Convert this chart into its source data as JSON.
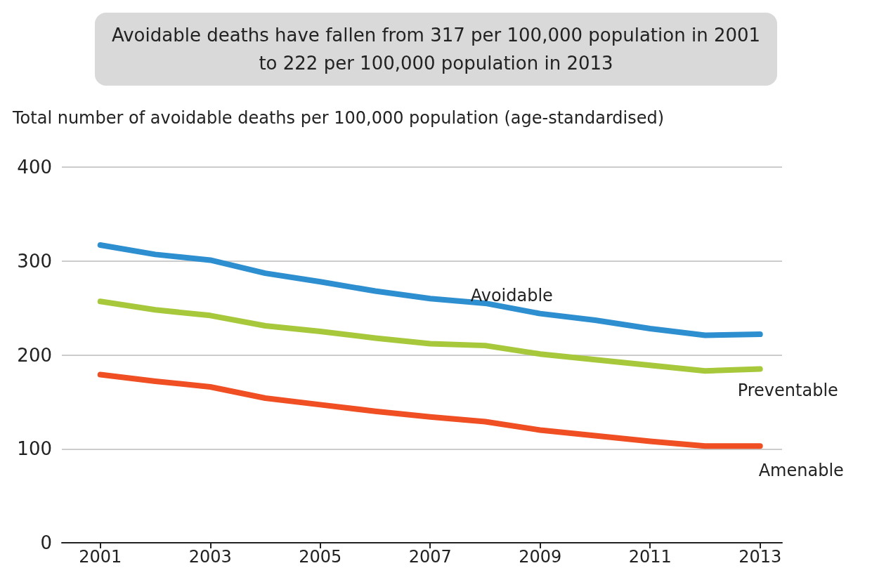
{
  "chart_data": {
    "type": "line",
    "title": "Avoidable deaths have fallen from 317 per 100,000 population in 2001\nto 222 per 100,000 population in 2013",
    "ylabel": "Total number of avoidable deaths per 100,000 population (age-standardised)",
    "x": [
      2001,
      2002,
      2003,
      2004,
      2005,
      2006,
      2007,
      2008,
      2009,
      2010,
      2011,
      2012,
      2013
    ],
    "series": [
      {
        "name": "Avoidable",
        "color": "#2e8fd0",
        "values": [
          317,
          307,
          301,
          287,
          278,
          268,
          260,
          255,
          244,
          237,
          228,
          221,
          222
        ]
      },
      {
        "name": "Preventable",
        "color": "#a8c83c",
        "values": [
          257,
          248,
          242,
          231,
          225,
          218,
          212,
          210,
          201,
          195,
          189,
          183,
          185
        ]
      },
      {
        "name": "Amenable",
        "color": "#f04e23",
        "values": [
          179,
          172,
          166,
          154,
          147,
          140,
          134,
          129,
          120,
          114,
          108,
          103,
          103
        ]
      }
    ],
    "xlim": [
      2000.3,
      2013.4
    ],
    "xticks": [
      2001,
      2003,
      2005,
      2007,
      2009,
      2011,
      2013
    ],
    "ylim": [
      0,
      400
    ],
    "yticks": [
      0,
      100,
      200,
      300,
      400
    ],
    "grid": "y",
    "legend": false,
    "line_style": "solid"
  }
}
